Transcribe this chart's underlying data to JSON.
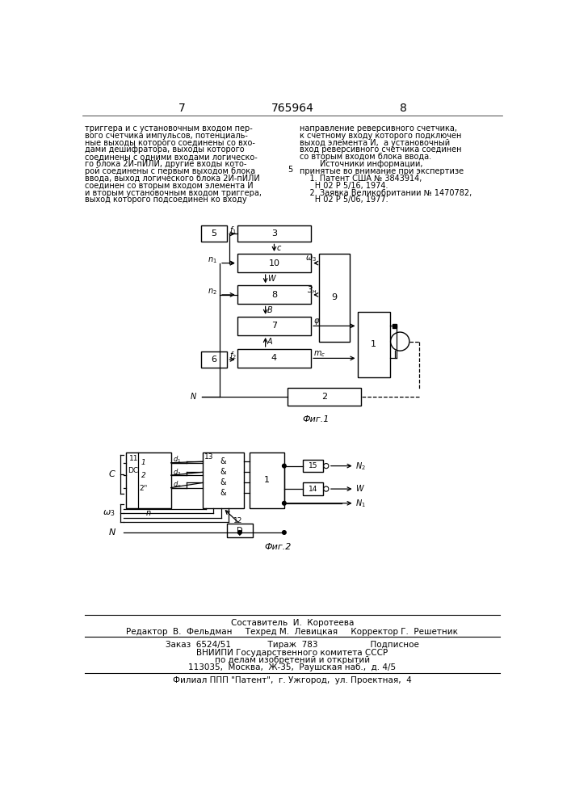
{
  "page_number_left": "7",
  "page_number_center": "765964",
  "page_number_right": "8",
  "left_text": [
    "триггера и с установочным входом пер-",
    "вого счетчика импульсов, потенциаль-",
    "ные выходы которого соединены со вхо-",
    "дами дешифратора, выходы которого",
    "соединены с одними входами логическо-",
    "го блока 2И-пИЛИ, другие входы кото-",
    "рой соединены с первым выходом блока",
    "ввода, выход логического блока 2И-пИЛИ",
    "соединен со вторым входом элемента И",
    "и вторым установочным входом триггера,",
    "выход которого подсоединен ко входу"
  ],
  "right_text": [
    "направление реверсивного счетчика,",
    "к счетному входу которого подключен",
    "выход элемента И,  а установочный",
    "вход реверсивного счетчика соединен",
    "со вторым входом блока ввода.",
    "        Источники информации,",
    "принятые во внимание при экспертизе",
    "    1. Патент США № 3843914,",
    "      Н 02 Р 5/16, 1974.",
    "    2. Заявка Великобритании № 1470782,",
    "      Н 02 Р 5/06, 1977."
  ],
  "fig1_label": "Фиг.1",
  "fig2_label": "Фиг.2",
  "footer_line1": "Составитель  И.  Коротеева",
  "footer_line2": "Редактор  В.  Фельдман     Техред М.  Левицкая     Корректор Г.  Решетник",
  "footer_line3": "Заказ  6524/51              Тираж  783                    Подписное",
  "footer_line4": "ВНИИПИ Государственного комитета СССР",
  "footer_line5": "по делам изобретений и открытий",
  "footer_line6": "113035,  Москва,  Ж-35,  Раушская наб.,  д. 4/5",
  "footer_line7": "Филиал ППП \"Патент\",  г. Ужгород,  ул. Проектная,  4",
  "bg_color": "#ffffff"
}
